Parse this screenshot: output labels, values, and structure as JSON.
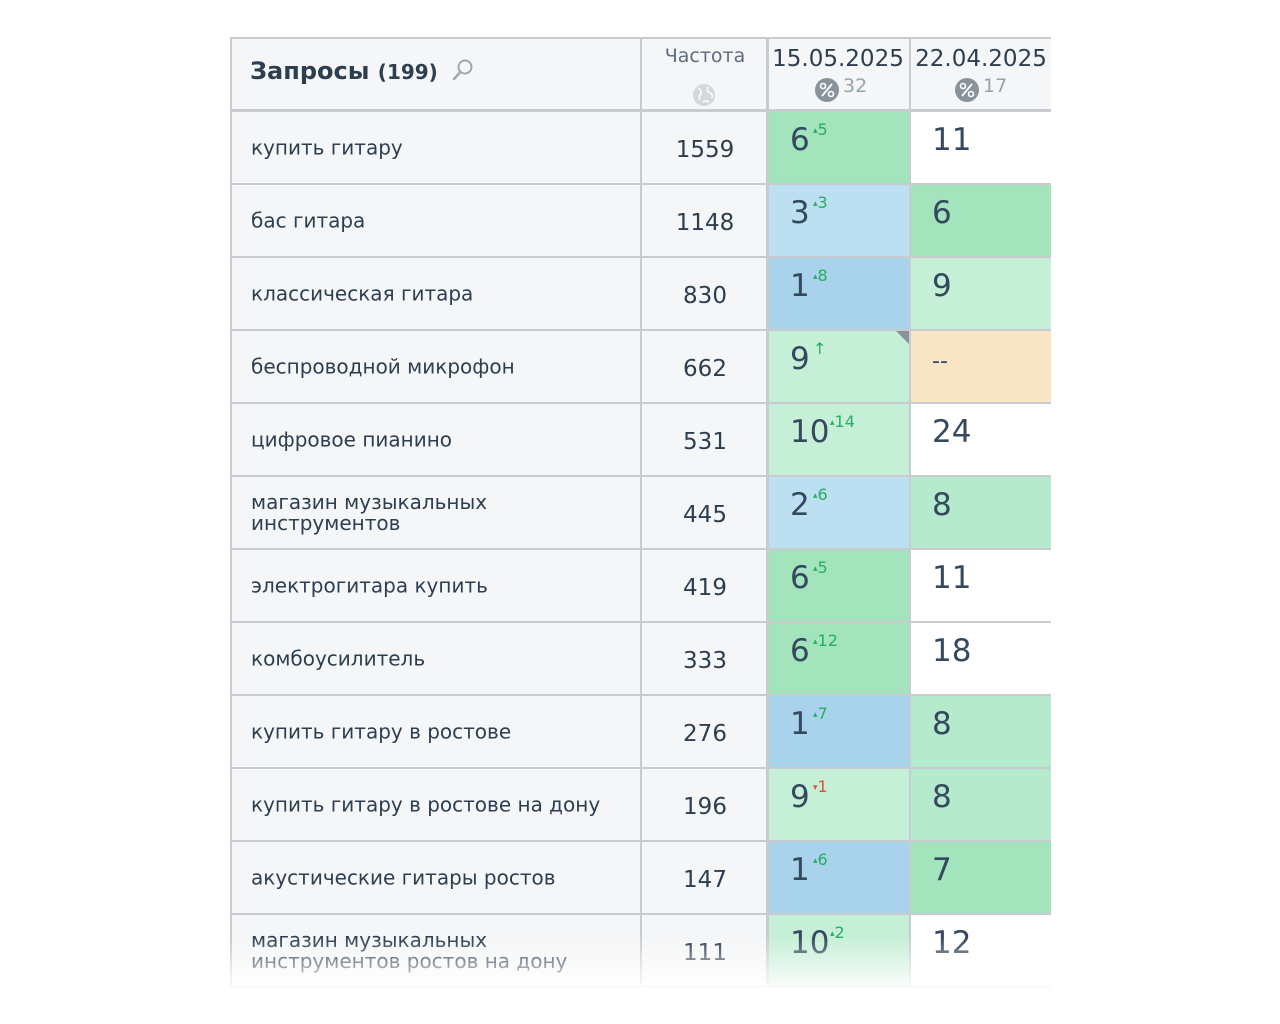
{
  "header": {
    "query_title": "Запросы",
    "query_count": "(199)",
    "frequency_label": "Частота",
    "dates": [
      {
        "date": "15.05.2025",
        "pct": "32"
      },
      {
        "date": "22.04.2025",
        "pct": "17"
      }
    ]
  },
  "colors": {
    "green_strong": "#a3e4bd",
    "green_light": "#c6efd7",
    "blue_strong": "#a9d2ec",
    "blue_light": "#bcdff1",
    "orange_light": "#f8e6c6",
    "delta_up": "#27ae60",
    "delta_down": "#e74c3c"
  },
  "rows": [
    {
      "query": "купить гитару",
      "freq": "1559",
      "p1": "6",
      "d1": "5",
      "dir1": "up",
      "c1": "#a3e4bd",
      "p2": "11",
      "c2": "#ffffff"
    },
    {
      "query": "бас гитара",
      "freq": "1148",
      "p1": "3",
      "d1": "3",
      "dir1": "up",
      "c1": "#bcdff1",
      "p2": "6",
      "c2": "#a3e4bd"
    },
    {
      "query": "классическая гитара",
      "freq": "830",
      "p1": "1",
      "d1": "8",
      "dir1": "up",
      "c1": "#a9d2ec",
      "p2": "9",
      "c2": "#c6efd7"
    },
    {
      "query": "беспроводной микрофон",
      "freq": "662",
      "p1": "9",
      "d1": "↑",
      "dir1": "up",
      "c1": "#c6efd7",
      "p2": "--",
      "c2": "#f8e6c6",
      "corner": true
    },
    {
      "query": "цифровое пианино",
      "freq": "531",
      "p1": "10",
      "d1": "14",
      "dir1": "up",
      "c1": "#c6efd7",
      "p2": "24",
      "c2": "#ffffff"
    },
    {
      "query": "магазин музыкальных инструментов",
      "freq": "445",
      "p1": "2",
      "d1": "6",
      "dir1": "up",
      "c1": "#bcdff1",
      "p2": "8",
      "c2": "#b5ebcc"
    },
    {
      "query": "электрогитара купить",
      "freq": "419",
      "p1": "6",
      "d1": "5",
      "dir1": "up",
      "c1": "#a3e4bd",
      "p2": "11",
      "c2": "#ffffff"
    },
    {
      "query": "комбоусилитель",
      "freq": "333",
      "p1": "6",
      "d1": "12",
      "dir1": "up",
      "c1": "#a3e4bd",
      "p2": "18",
      "c2": "#ffffff"
    },
    {
      "query": "купить гитару в ростове",
      "freq": "276",
      "p1": "1",
      "d1": "7",
      "dir1": "up",
      "c1": "#a9d2ec",
      "p2": "8",
      "c2": "#b5ebcc"
    },
    {
      "query": "купить гитару в ростове на дону",
      "freq": "196",
      "p1": "9",
      "d1": "1",
      "dir1": "down",
      "c1": "#c6efd7",
      "p2": "8",
      "c2": "#b5ebcc"
    },
    {
      "query": "акустические гитары ростов",
      "freq": "147",
      "p1": "1",
      "d1": "6",
      "dir1": "up",
      "c1": "#a9d2ec",
      "p2": "7",
      "c2": "#a3e4bd"
    },
    {
      "query": "магазин музыкальных инструментов ростов на дону",
      "freq": "111",
      "p1": "10",
      "d1": "2",
      "dir1": "up",
      "c1": "#c6efd7",
      "p2": "12",
      "c2": "#ffffff"
    }
  ]
}
